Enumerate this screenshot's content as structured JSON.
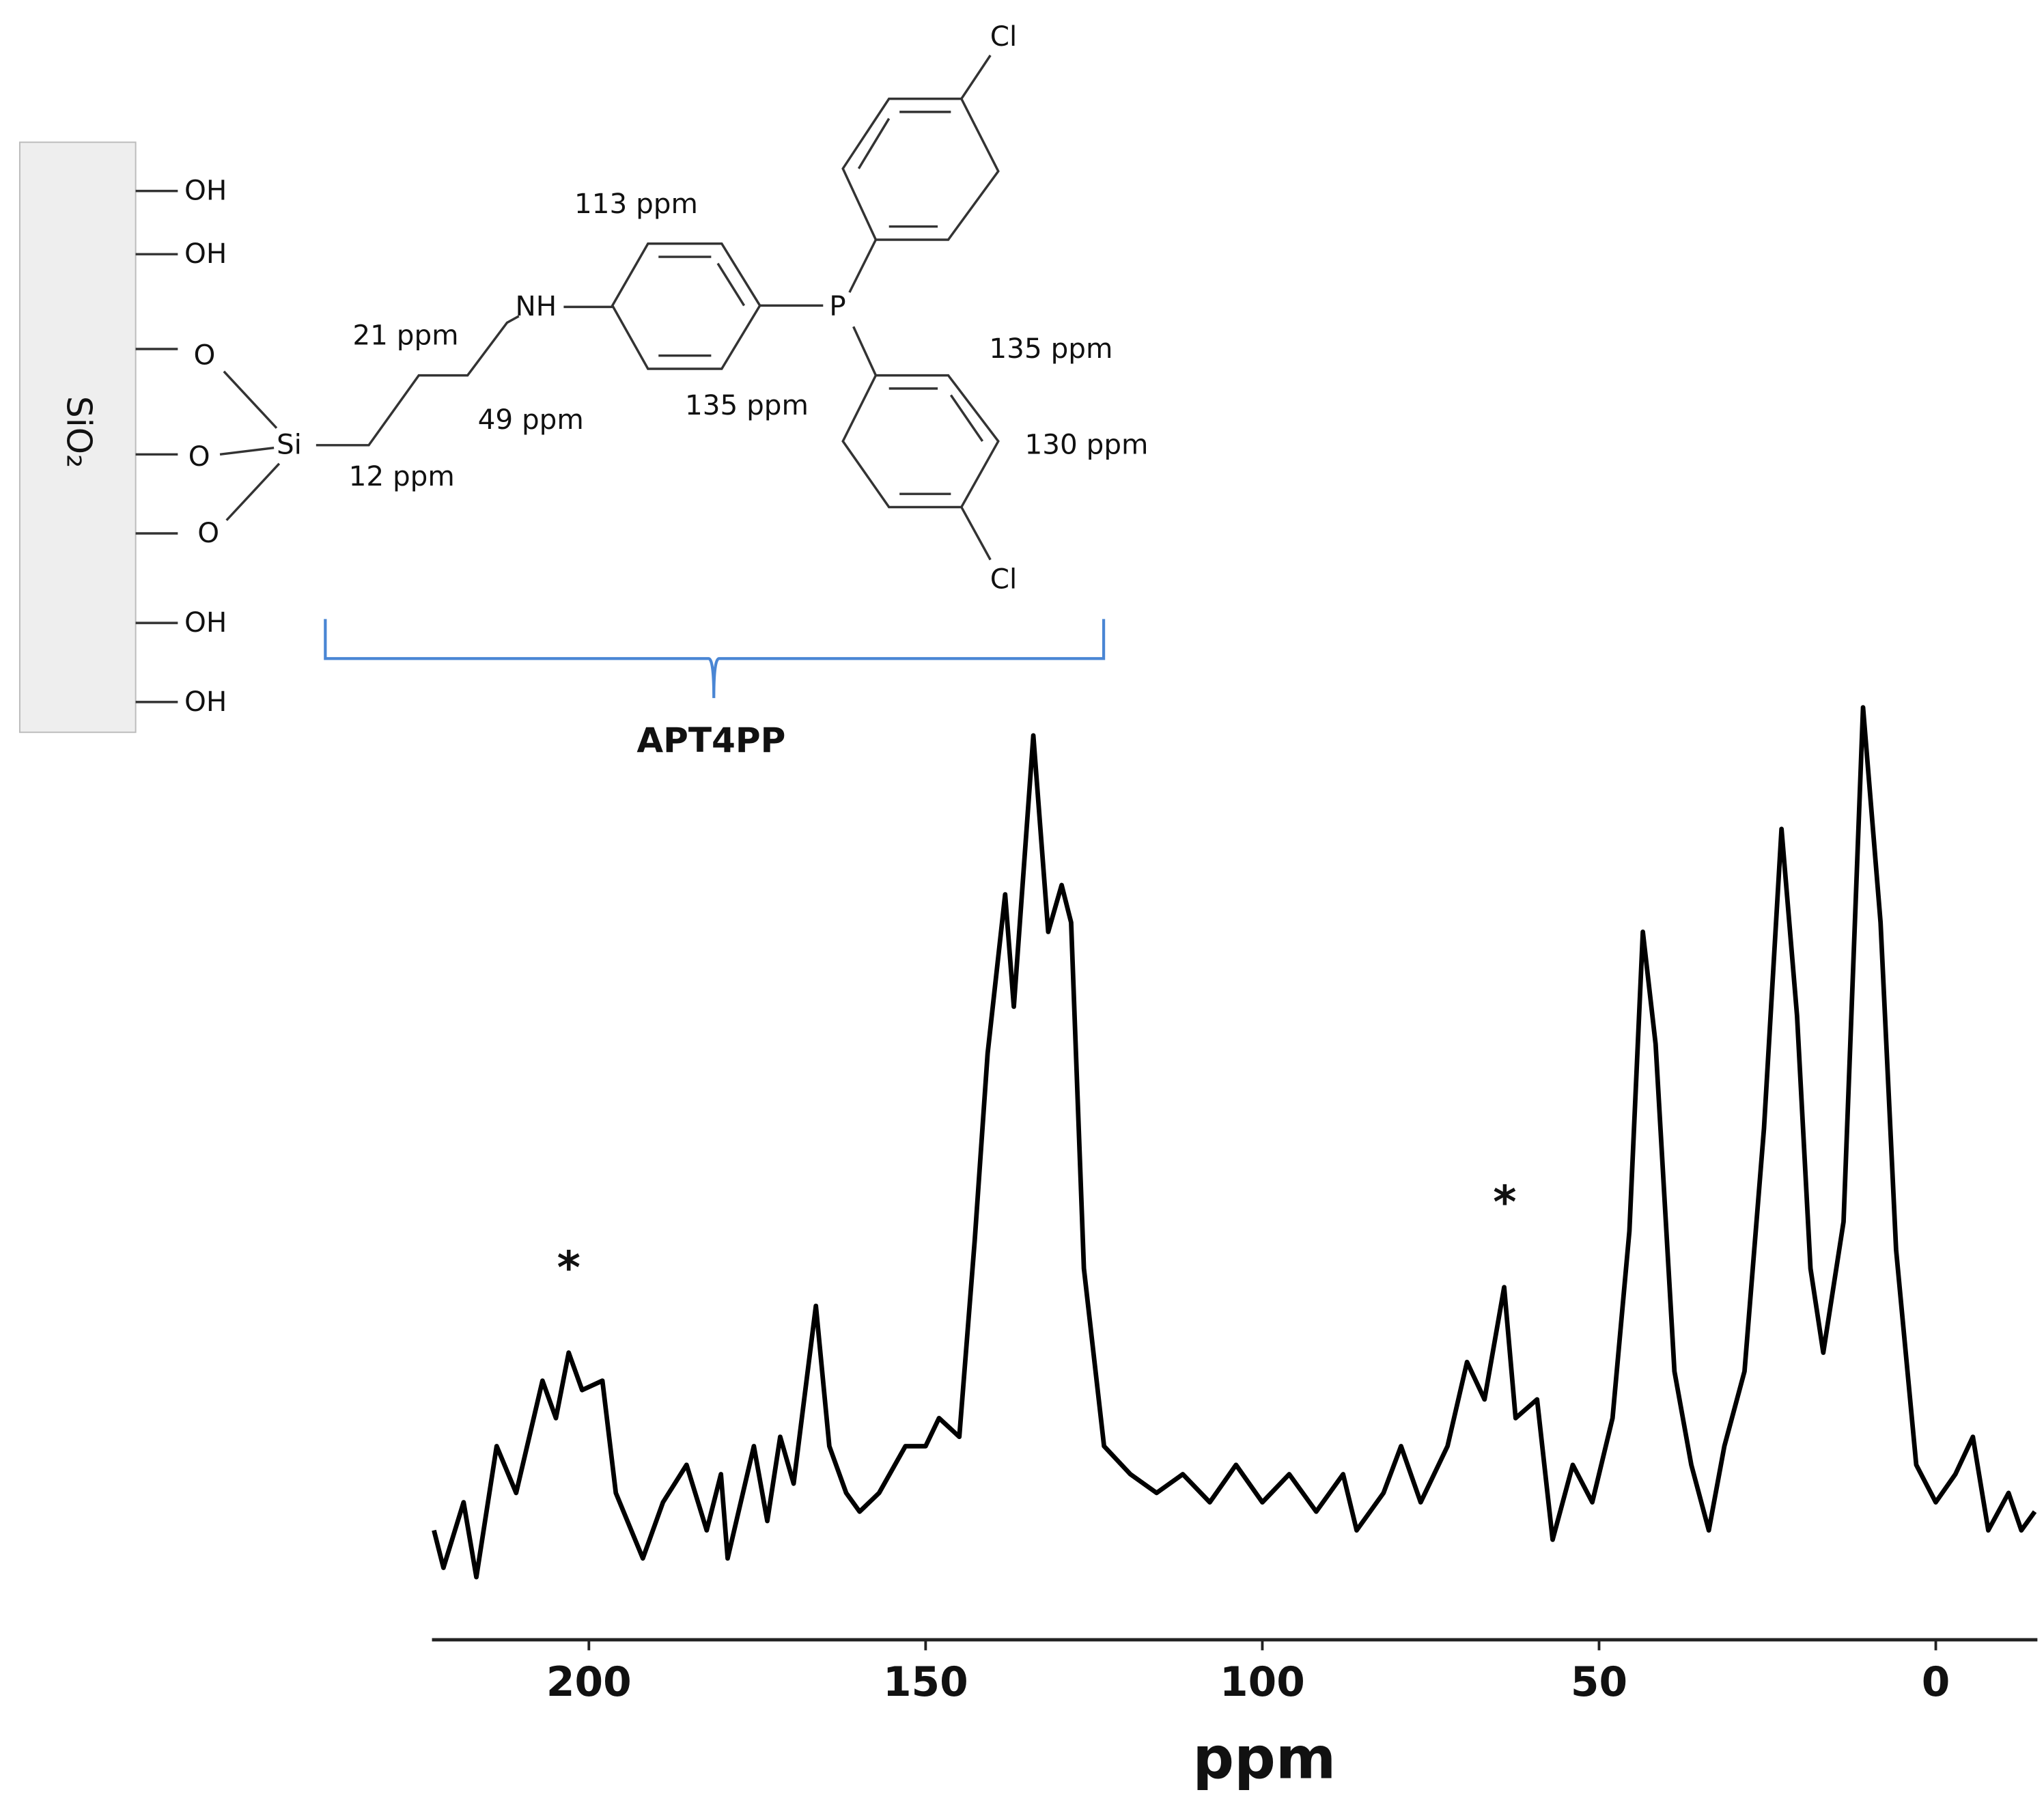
{
  "chart_data": {
    "type": "line",
    "xlabel": "ppm",
    "x": [
      223,
      221.6,
      218.6,
      216.7,
      213.7,
      210.8,
      206.9,
      204.9,
      203,
      201,
      198,
      196,
      192,
      189,
      185.5,
      182.5,
      180.4,
      179.4,
      175.5,
      173.5,
      171.6,
      169.6,
      166.3,
      164.3,
      161.8,
      159.8,
      156.9,
      153,
      150,
      148,
      145,
      142.7,
      140.8,
      138.2,
      136.9,
      134,
      131.8,
      129.8,
      128.4,
      126.5,
      123.5,
      119.6,
      115.7,
      111.8,
      107.8,
      103.9,
      100,
      96,
      92,
      88,
      86,
      82,
      79.4,
      76.5,
      72.5,
      69.6,
      67,
      64.1,
      62.4,
      59.2,
      56.9,
      53.9,
      51,
      48,
      45.5,
      43.5,
      41.6,
      38.8,
      36.3,
      33.7,
      31.4,
      28.4,
      25.5,
      22.9,
      20.6,
      18.6,
      16.7,
      13.7,
      10.8,
      8.2,
      5.9,
      2.9,
      0,
      -2.9,
      -5.5,
      -7.8,
      -10.8,
      -12.7,
      -14.7
    ],
    "series": [
      {
        "color": "#000000",
        "values": [
          11,
          7,
          14,
          6,
          20,
          15,
          27,
          23,
          30,
          26,
          27,
          15,
          8,
          14,
          18,
          11,
          17,
          8,
          20,
          12,
          21,
          16,
          35,
          20,
          15,
          13,
          15,
          20,
          20,
          23,
          21,
          42,
          62,
          79,
          67,
          96,
          75,
          80,
          76,
          39,
          20,
          17,
          15,
          17,
          14,
          18,
          14,
          17,
          13,
          17,
          11,
          15,
          20,
          14,
          20,
          29,
          25,
          37,
          23,
          25,
          10,
          18,
          14,
          23,
          43,
          75,
          63,
          28,
          18,
          11,
          20,
          28,
          54,
          86,
          66,
          39,
          30,
          44,
          99,
          76,
          41,
          18,
          14,
          17,
          21,
          11,
          15,
          11,
          13
        ]
      }
    ],
    "xlim": [
      223.3,
      -14.7
    ],
    "ylim": [
      0,
      100
    ],
    "xticks": [
      200,
      150,
      100,
      50,
      0
    ],
    "annotations": [
      {
        "text": "*",
        "x": 203
      },
      {
        "text": "*",
        "x": 64
      }
    ]
  },
  "structure": {
    "support": "SiO₂",
    "hydroxyls": [
      "OH",
      "OH",
      "OH",
      "OH"
    ],
    "oxygens": [
      "O",
      "O",
      "O"
    ],
    "silicon": "Si",
    "amine": "NH",
    "phosphorus": "P",
    "chlorines": [
      "Cl",
      "Cl"
    ],
    "shifts": [
      "113 ppm",
      "21 ppm",
      "49 ppm",
      "12 ppm",
      "135 ppm",
      "135 ppm",
      "130 ppm"
    ],
    "name": "APT4PP"
  }
}
